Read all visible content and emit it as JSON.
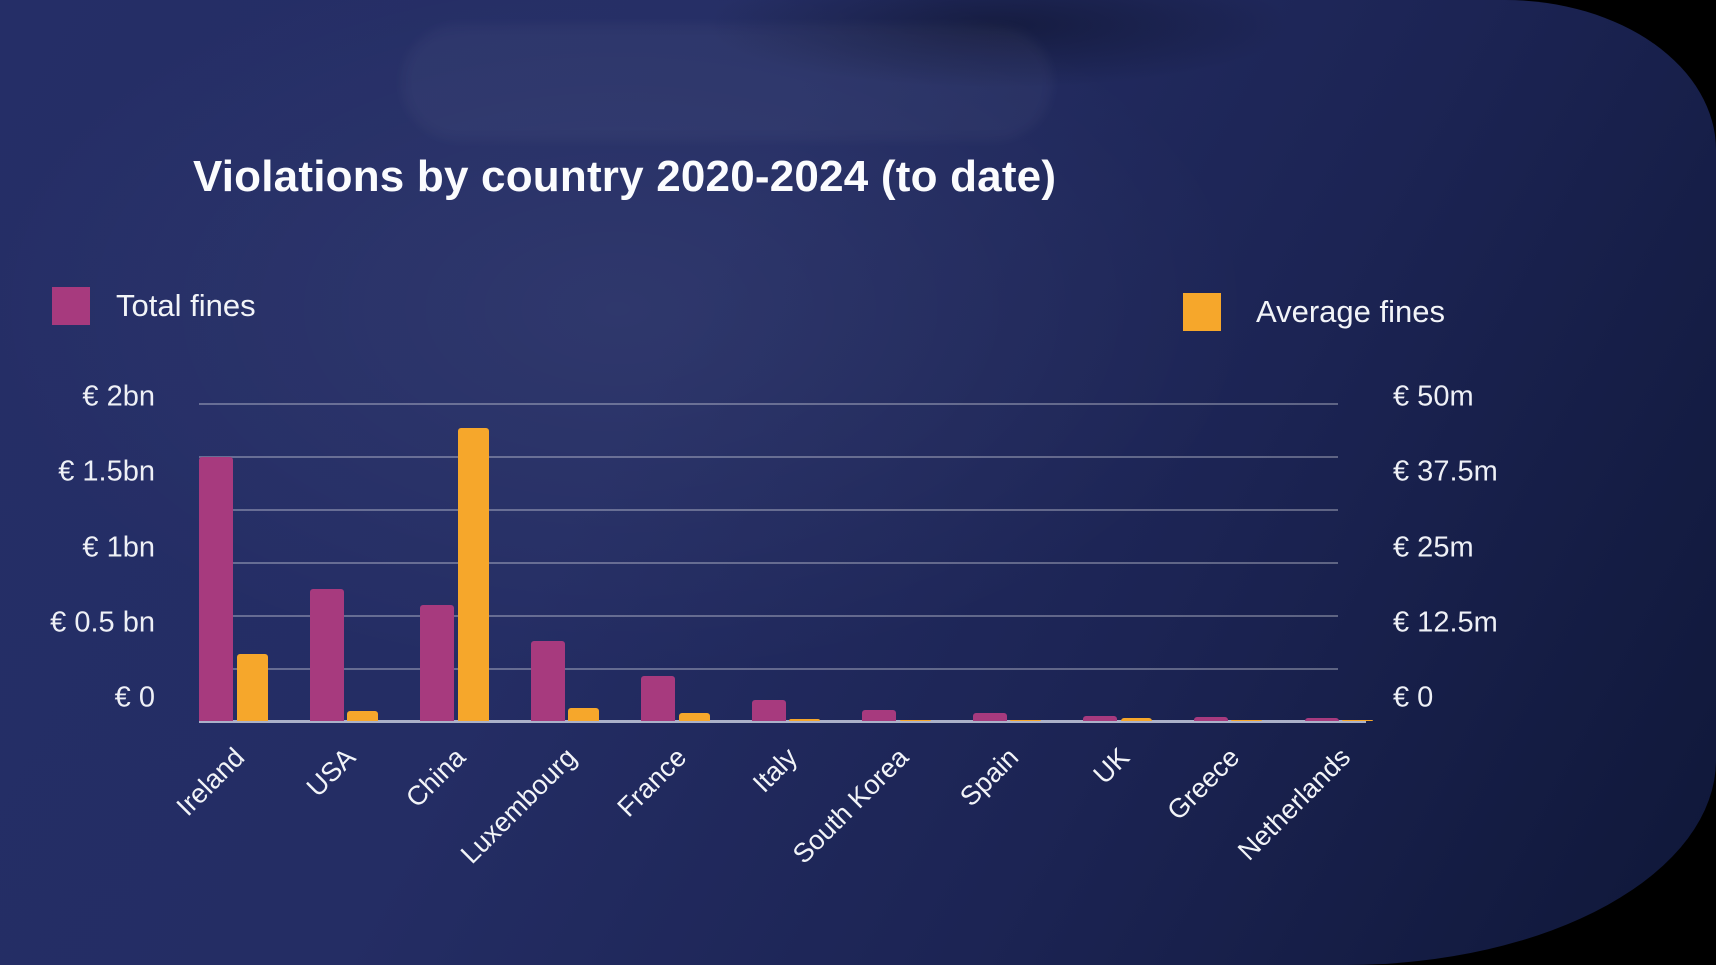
{
  "chart": {
    "title": "Violations by country 2020-2024 (to date)"
  },
  "legend": {
    "total": "Total fines",
    "average": "Average fines"
  },
  "chart_data": {
    "type": "bar",
    "title": "Violations by country 2020-2024 (to date)",
    "categories": [
      "Ireland",
      "USA",
      "China",
      "Luxembourg",
      "France",
      "Italy",
      "South Korea",
      "Spain",
      "UK",
      "Greece",
      "Netherlands"
    ],
    "series": [
      {
        "name": "Total fines",
        "axis": "left",
        "unit": "EUR millions",
        "color": "#a73a7e",
        "values_eur_millions": [
          1660,
          830,
          730,
          500,
          280,
          130,
          70,
          50,
          30,
          25,
          20
        ]
      },
      {
        "name": "Average fines",
        "axis": "right",
        "unit": "EUR millions",
        "color": "#f6a72b",
        "values_eur_millions": [
          10.5,
          1.6,
          46,
          2,
          1.2,
          0.3,
          0.2,
          0.2,
          0.5,
          0.1,
          0.1
        ]
      }
    ],
    "left_axis": {
      "ticks": [
        "€ 2bn",
        "€ 1.5bn",
        "€ 1bn",
        "€ 0.5 bn",
        "€ 0"
      ],
      "min_eur_millions": 0,
      "max_eur_millions": 2000
    },
    "right_axis": {
      "ticks": [
        "€ 50m",
        "€ 37.5m",
        "€ 25m",
        "€ 12.5m",
        "€ 0"
      ],
      "min_eur_millions": 0,
      "max_eur_millions": 50
    },
    "gridlines": {
      "count": 7,
      "visible": true
    },
    "legend_position": "top",
    "x_label_rotation_deg": -45,
    "colors": {
      "background_navy": "#242d66",
      "background_dark": "#0f1738",
      "gridline": "rgba(255,255,255,0.30)",
      "baseline": "#abb1c9",
      "text": "#f2f4f8"
    }
  }
}
